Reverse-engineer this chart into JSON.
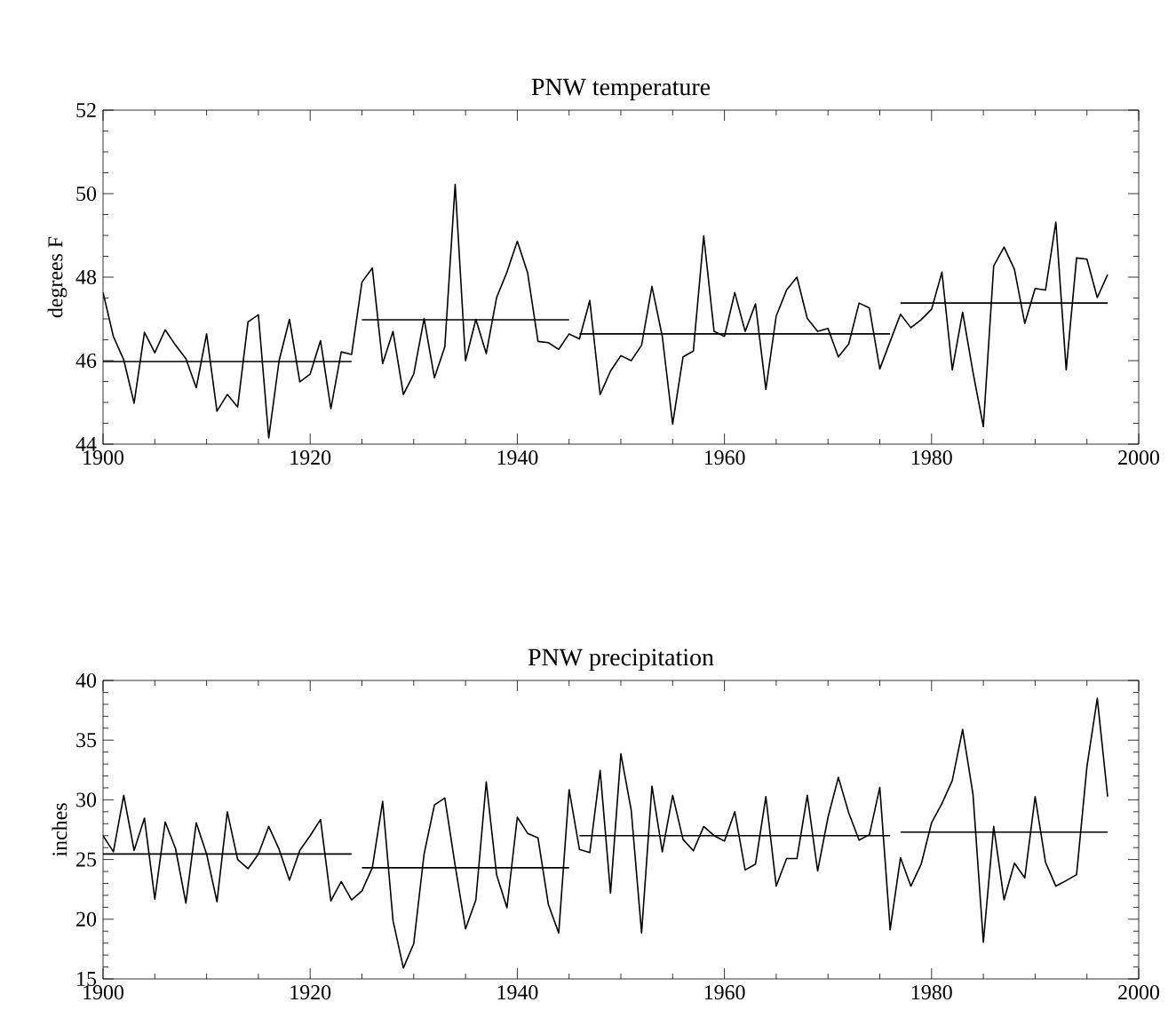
{
  "chart_data": [
    {
      "type": "line",
      "title": "PNW temperature",
      "ylabel": "degrees F",
      "x": [
        1900,
        1901,
        1902,
        1903,
        1904,
        1905,
        1906,
        1907,
        1908,
        1909,
        1910,
        1911,
        1912,
        1913,
        1914,
        1915,
        1916,
        1917,
        1918,
        1919,
        1920,
        1921,
        1922,
        1923,
        1924,
        1925,
        1926,
        1927,
        1928,
        1929,
        1930,
        1931,
        1932,
        1933,
        1934,
        1935,
        1936,
        1937,
        1938,
        1939,
        1940,
        1941,
        1942,
        1943,
        1944,
        1945,
        1946,
        1947,
        1948,
        1949,
        1950,
        1951,
        1952,
        1953,
        1954,
        1955,
        1956,
        1957,
        1958,
        1959,
        1960,
        1961,
        1962,
        1963,
        1964,
        1965,
        1966,
        1967,
        1968,
        1969,
        1970,
        1971,
        1972,
        1973,
        1974,
        1975,
        1976,
        1977,
        1978,
        1979,
        1980,
        1981,
        1982,
        1983,
        1984,
        1985,
        1986,
        1987,
        1988,
        1989,
        1990,
        1991,
        1992,
        1993,
        1994,
        1995,
        1996,
        1997
      ],
      "xlim": [
        1900,
        2000
      ],
      "xticks": [
        1900,
        1920,
        1940,
        1960,
        1980,
        2000
      ],
      "ylim": [
        44,
        52
      ],
      "yticks": [
        44,
        46,
        48,
        50,
        52
      ],
      "series": [
        {
          "color": "#000000",
          "values": [
            47.63,
            46.58,
            46.02,
            44.98,
            46.68,
            46.19,
            46.74,
            46.37,
            46.05,
            45.35,
            46.64,
            44.79,
            45.19,
            44.89,
            46.93,
            47.1,
            44.15,
            46.0,
            46.99,
            45.49,
            45.68,
            46.48,
            44.85,
            46.21,
            46.15,
            47.88,
            48.22,
            45.93,
            46.7,
            45.19,
            45.68,
            47.01,
            45.59,
            46.33,
            50.22,
            46.0,
            46.99,
            46.17,
            47.51,
            48.12,
            48.86,
            48.1,
            46.46,
            46.43,
            46.27,
            46.64,
            46.52,
            47.44,
            45.19,
            45.75,
            46.12,
            46.0,
            46.37,
            47.78,
            46.58,
            44.48,
            46.09,
            46.23,
            48.99,
            46.7,
            46.58,
            47.63,
            46.7,
            47.36,
            45.31,
            47.07,
            47.69,
            48.0,
            47.01,
            46.7,
            46.77,
            46.09,
            46.4,
            47.38,
            47.26,
            45.8,
            46.46,
            47.11,
            46.79,
            46.98,
            47.23,
            48.12,
            45.78,
            47.16,
            45.72,
            44.42,
            48.27,
            48.72,
            48.19,
            46.89,
            47.73,
            47.69,
            49.32,
            45.78,
            48.46,
            48.43,
            47.51,
            48.06
          ]
        },
        {
          "color": "#000000",
          "x": [
            1900,
            1924
          ],
          "values": [
            45.98,
            45.98
          ]
        },
        {
          "color": "#000000",
          "x": [
            1925,
            1945
          ],
          "values": [
            46.98,
            46.98
          ]
        },
        {
          "color": "#000000",
          "x": [
            1946,
            1976
          ],
          "values": [
            46.64,
            46.64
          ]
        },
        {
          "color": "#000000",
          "x": [
            1977,
            1997
          ],
          "values": [
            47.38,
            47.38
          ]
        }
      ]
    },
    {
      "type": "line",
      "title": "PNW precipitation",
      "ylabel": "inches",
      "x": [
        1900,
        1901,
        1902,
        1903,
        1904,
        1905,
        1906,
        1907,
        1908,
        1909,
        1910,
        1911,
        1912,
        1913,
        1914,
        1915,
        1916,
        1917,
        1918,
        1919,
        1920,
        1921,
        1922,
        1923,
        1924,
        1925,
        1926,
        1927,
        1928,
        1929,
        1930,
        1931,
        1932,
        1933,
        1934,
        1935,
        1936,
        1937,
        1938,
        1939,
        1940,
        1941,
        1942,
        1943,
        1944,
        1945,
        1946,
        1947,
        1948,
        1949,
        1950,
        1951,
        1952,
        1953,
        1954,
        1955,
        1956,
        1957,
        1958,
        1959,
        1960,
        1961,
        1962,
        1963,
        1964,
        1965,
        1966,
        1967,
        1968,
        1969,
        1970,
        1971,
        1972,
        1973,
        1974,
        1975,
        1976,
        1977,
        1978,
        1979,
        1980,
        1981,
        1982,
        1983,
        1984,
        1985,
        1986,
        1987,
        1988,
        1989,
        1990,
        1991,
        1992,
        1993,
        1994,
        1995,
        1996,
        1997
      ],
      "xlim": [
        1900,
        2000
      ],
      "xticks": [
        1900,
        1920,
        1940,
        1960,
        1980,
        2000
      ],
      "ylim": [
        15,
        40
      ],
      "yticks": [
        15,
        20,
        25,
        30,
        35,
        40
      ],
      "series": [
        {
          "color": "#000000",
          "values": [
            27.0,
            25.65,
            30.38,
            25.77,
            28.46,
            21.69,
            28.15,
            25.92,
            21.35,
            28.08,
            25.46,
            21.46,
            29.0,
            25.0,
            24.23,
            25.46,
            27.77,
            25.85,
            23.27,
            25.77,
            27.0,
            28.35,
            21.54,
            23.15,
            21.62,
            22.38,
            24.31,
            29.88,
            19.88,
            15.92,
            17.96,
            25.46,
            29.58,
            30.15,
            24.5,
            19.19,
            21.62,
            31.5,
            23.73,
            20.96,
            28.54,
            27.19,
            26.81,
            21.23,
            18.85,
            30.85,
            25.85,
            25.58,
            32.46,
            22.19,
            33.85,
            29.12,
            18.85,
            31.15,
            25.65,
            30.38,
            26.69,
            25.73,
            27.77,
            27.0,
            26.54,
            29.0,
            24.12,
            24.62,
            30.27,
            22.77,
            25.08,
            25.08,
            30.38,
            24.04,
            28.54,
            31.88,
            28.92,
            26.62,
            27.08,
            31.04,
            19.12,
            25.15,
            22.77,
            24.62,
            28.08,
            29.69,
            31.62,
            35.9,
            30.46,
            18.08,
            27.77,
            21.62,
            24.69,
            23.46,
            30.27,
            24.77,
            22.77,
            23.23,
            23.73,
            32.77,
            38.5,
            30.27
          ]
        },
        {
          "color": "#000000",
          "x": [
            1900,
            1924
          ],
          "values": [
            25.46,
            25.46
          ]
        },
        {
          "color": "#000000",
          "x": [
            1925,
            1945
          ],
          "values": [
            24.31,
            24.31
          ]
        },
        {
          "color": "#000000",
          "x": [
            1946,
            1976
          ],
          "values": [
            27.0,
            27.0
          ]
        },
        {
          "color": "#000000",
          "x": [
            1977,
            1997
          ],
          "values": [
            27.3,
            27.3
          ]
        }
      ]
    }
  ]
}
